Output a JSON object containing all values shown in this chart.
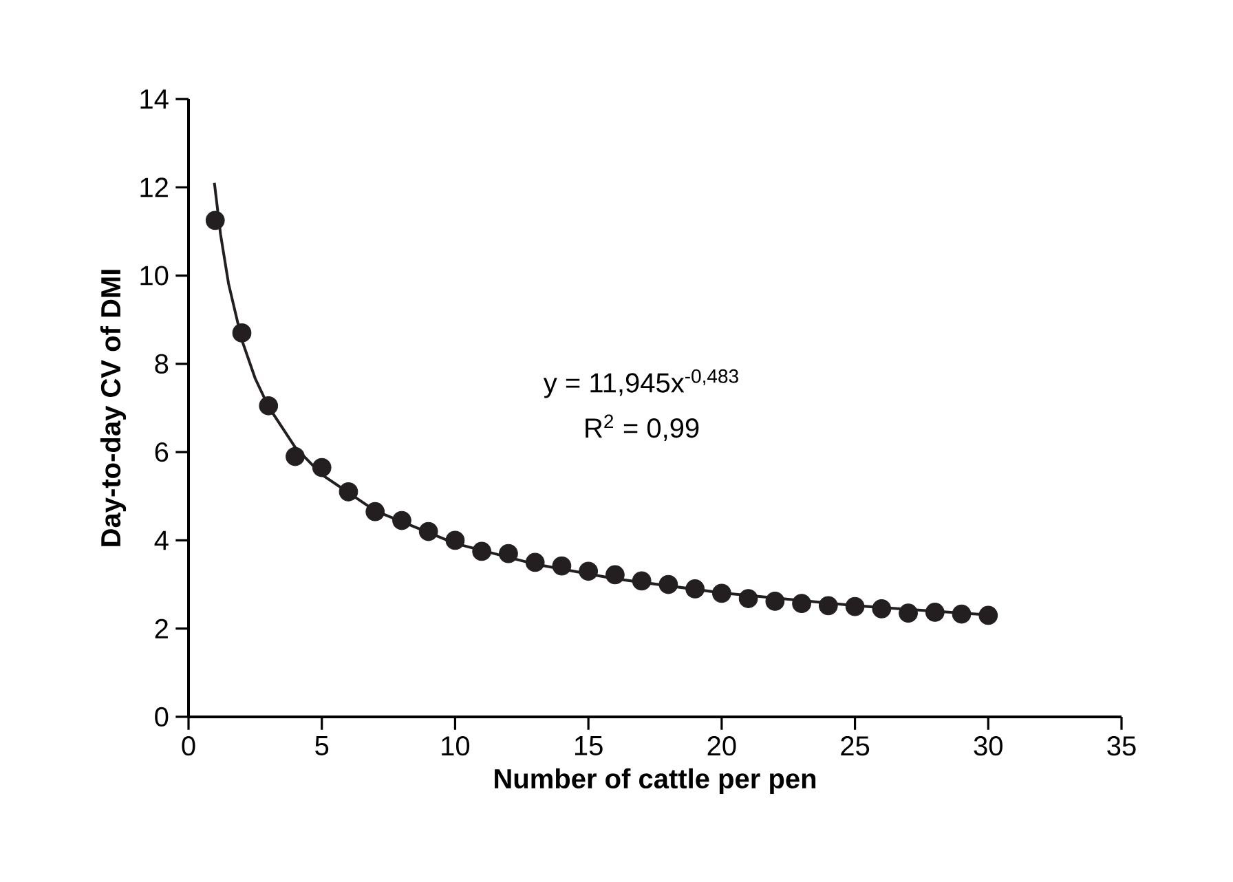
{
  "chart_data": {
    "type": "scatter",
    "xlabel": "Number of cattle per pen",
    "ylabel": "Day-to-day CV of DMI",
    "xlim": [
      0,
      35
    ],
    "ylim": [
      0,
      14
    ],
    "xticks": [
      0,
      5,
      10,
      15,
      20,
      25,
      30,
      35
    ],
    "yticks": [
      0,
      2,
      4,
      6,
      8,
      10,
      12,
      14
    ],
    "grid": false,
    "annotations": [
      "y = 11,945x$^{-0,483}$",
      "R$^{2}$ = 0,99"
    ],
    "series": [
      {
        "color": "#231f20",
        "marker": "circle",
        "x": [
          1,
          2,
          3,
          4,
          5,
          6,
          7,
          8,
          9,
          10,
          11,
          12,
          13,
          14,
          15,
          16,
          17,
          18,
          19,
          20,
          21,
          22,
          23,
          24,
          25,
          26,
          27,
          28,
          29,
          30
        ],
        "values": [
          11.25,
          8.7,
          7.05,
          5.9,
          5.65,
          5.1,
          4.65,
          4.45,
          4.2,
          4.0,
          3.75,
          3.7,
          3.5,
          3.42,
          3.3,
          3.22,
          3.08,
          3.0,
          2.9,
          2.8,
          2.68,
          2.62,
          2.57,
          2.52,
          2.5,
          2.45,
          2.35,
          2.37,
          2.33,
          2.3
        ]
      },
      {
        "type": "line",
        "color": "#231f20",
        "marker": "none",
        "line_style": "solid",
        "x": [
          0.97,
          1.2,
          1.5,
          2,
          2.5,
          3,
          4,
          5,
          7,
          10,
          13,
          16,
          20,
          25,
          30
        ],
        "values": [
          12.1,
          10.94,
          9.82,
          8.54,
          7.67,
          7.03,
          6.11,
          5.49,
          4.67,
          3.93,
          3.46,
          3.13,
          2.81,
          2.52,
          2.31
        ]
      }
    ]
  }
}
